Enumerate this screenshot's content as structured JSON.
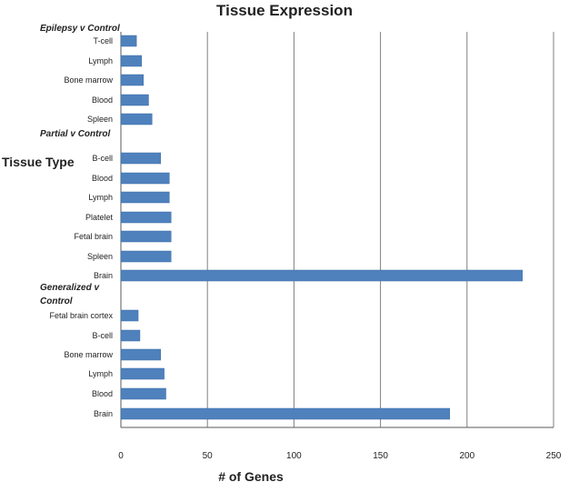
{
  "chart_data": {
    "type": "bar",
    "orientation": "horizontal",
    "title": "Tissue Expression",
    "xlabel": "# of Genes",
    "ylabel": "Tissue Type",
    "xlim": [
      0,
      250
    ],
    "x_ticks": [
      "0",
      "50",
      "100",
      "150",
      "200",
      "250"
    ],
    "grid": "vertical major gridlines",
    "legend": "none",
    "bar_color": "#4f81bd",
    "groups": [
      {
        "label": "Epilepsy v Control",
        "categories": [
          "T-cell",
          "Lymph",
          "Bone marrow",
          "Blood",
          "Spleen"
        ],
        "values": [
          9,
          12,
          13,
          16,
          18
        ]
      },
      {
        "label": "Partial v Control",
        "categories": [
          "B-cell",
          "Blood",
          "Lymph",
          "Platelet",
          "Fetal brain",
          "Spleen",
          "Brain"
        ],
        "values": [
          23,
          28,
          28,
          29,
          29,
          29,
          232
        ]
      },
      {
        "label": "Generalized v Control",
        "categories": [
          "Fetal brain cortex",
          "B-cell",
          "Bone marrow",
          "Lymph",
          "Blood",
          "Brain"
        ],
        "values": [
          10,
          11,
          23,
          25,
          26,
          190
        ]
      }
    ]
  }
}
